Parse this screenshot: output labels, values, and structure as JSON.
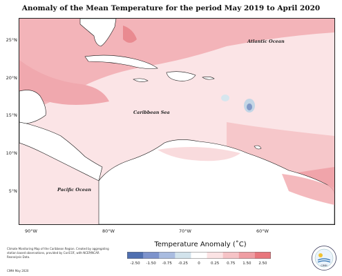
{
  "title": "Anomaly of the Mean Temperature for the period May 2019 to April 2020",
  "map": {
    "labels": {
      "atlantic": "Atlantic Ocean",
      "caribbean": "Caribbean Sea",
      "pacific": "Pacific Ocean"
    },
    "lat_ticks": [
      "25°N",
      "20°N",
      "15°N",
      "10°N",
      "5°N"
    ],
    "lon_ticks": [
      "90°W",
      "80°W",
      "70°W",
      "60°W"
    ]
  },
  "legend": {
    "title": "Temperature Anomaly (˚C)",
    "ticks": [
      "-2.50",
      "-1.50",
      "-0.75",
      "-0.25",
      "0",
      "0.25",
      "0.75",
      "1.50",
      "2.50"
    ],
    "colors": [
      "#4f6fb0",
      "#7d93cc",
      "#a9bce0",
      "#d2e3ec",
      "#ffffff",
      "#fbe3e4",
      "#f6c3c6",
      "#ef9da2",
      "#e8767c"
    ]
  },
  "credits": {
    "text": "Climate Monitoring Map of the Caribbean Region. Created by aggregating station based observations, provided by CariCOF, with NCEP/NCAR Reanalysis Data.",
    "date": "CIMH May 2020"
  },
  "logo": {
    "text": "CIMH"
  }
}
